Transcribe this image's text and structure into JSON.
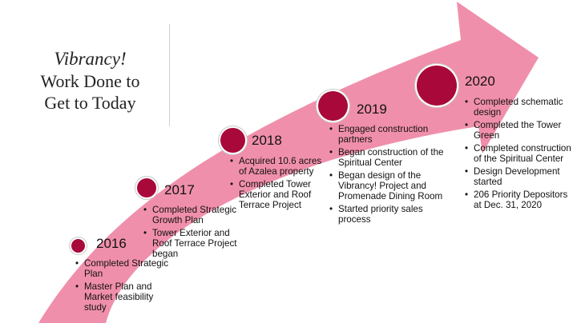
{
  "title": {
    "line1": "Vibrancy!",
    "line2": "Work Done to",
    "line3": "Get to Today"
  },
  "colors": {
    "arrow": "#f08fab",
    "dot": "#a8093a",
    "text": "#111111"
  },
  "milestones": [
    {
      "year": "2016",
      "items": [
        "Completed Strategic Plan",
        "Master Plan and Market feasibility study"
      ]
    },
    {
      "year": "2017",
      "items": [
        "Completed Strategic Growth Plan",
        "Tower Exterior and Roof Terrace Project began"
      ]
    },
    {
      "year": "2018",
      "items": [
        "Acquired 10.6 acres of Azalea property",
        "Completed Tower Exterior and Roof Terrace Project"
      ]
    },
    {
      "year": "2019",
      "items": [
        "Engaged construction partners",
        "Began construction of the Spiritual Center",
        "Began design of the Vibrancy! Project and Promenade Dining Room",
        "Started priority sales process"
      ]
    },
    {
      "year": "2020",
      "items": [
        "Completed schematic design",
        "Completed the Tower Green",
        "Completed construction of the Spiritual Center",
        "Design Development started",
        "206 Priority Depositors at Dec. 31, 2020"
      ]
    }
  ]
}
